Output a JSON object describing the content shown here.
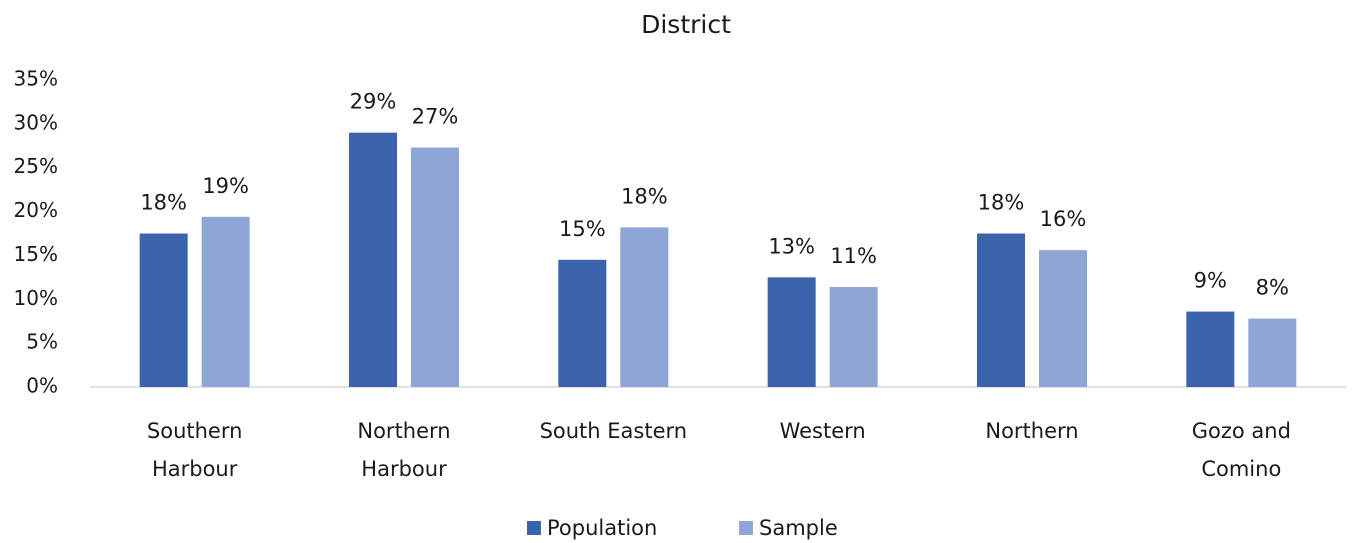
{
  "chart_data": {
    "type": "bar",
    "title": "District",
    "categories": [
      [
        "Southern",
        "Harbour"
      ],
      [
        "Northern",
        "Harbour"
      ],
      [
        "South Eastern"
      ],
      [
        "Western"
      ],
      [
        "Northern"
      ],
      [
        "Gozo and",
        "Comino"
      ]
    ],
    "series": [
      {
        "name": "Population",
        "color": "#3c64ad",
        "values": [
          17.5,
          29.0,
          14.5,
          12.5,
          17.5,
          8.6
        ],
        "value_labels": [
          "18%",
          "29%",
          "15%",
          "13%",
          "18%",
          "9%"
        ]
      },
      {
        "name": "Sample",
        "color": "#8fa5d6",
        "values": [
          19.4,
          27.3,
          18.2,
          11.4,
          15.6,
          7.8
        ],
        "value_labels": [
          "19%",
          "27%",
          "18%",
          "11%",
          "16%",
          "8%"
        ]
      }
    ],
    "ylim": [
      0,
      35
    ],
    "yticks": [
      {
        "value": 0,
        "label": "0%"
      },
      {
        "value": 5,
        "label": "5%"
      },
      {
        "value": 10,
        "label": "10%"
      },
      {
        "value": 15,
        "label": "15%"
      },
      {
        "value": 20,
        "label": "20%"
      },
      {
        "value": 25,
        "label": "25%"
      },
      {
        "value": 30,
        "label": "30%"
      },
      {
        "value": 35,
        "label": "35%"
      }
    ],
    "grid": false,
    "legend": "bottom"
  }
}
